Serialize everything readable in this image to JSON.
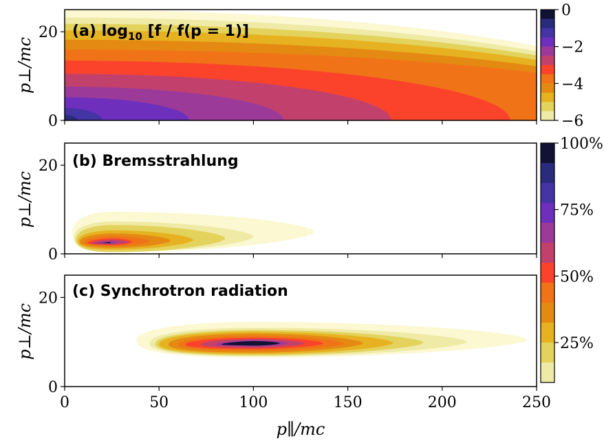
{
  "chart_data": [
    {
      "type": "heatmap",
      "panel": "a",
      "title_prefix": "(a) log",
      "title_sub": "10",
      "title_suffix": " [f / f(p = 1)]",
      "xlabel": "p∥/mc",
      "ylabel": "p⊥/mc",
      "xlim": [
        0,
        250
      ],
      "ylim": [
        0,
        25
      ],
      "xticks": [
        0,
        50,
        100,
        150,
        200,
        250
      ],
      "yticks": [
        0,
        20
      ],
      "contour_levels": [
        -0.5,
        -1,
        -1.5,
        -2,
        -2.5,
        -3,
        -3.5,
        -4,
        -4.5,
        -5,
        -5.5,
        -6
      ],
      "contour_extent": [
        {
          "level": -0.5,
          "p_par_max": 7,
          "p_perp_max": 1.2
        },
        {
          "level": -1,
          "p_par_max": 20,
          "p_perp_max": 2.8
        },
        {
          "level": -1.5,
          "p_par_max": 66,
          "p_perp_max": 5.2
        },
        {
          "level": -2,
          "p_par_max": 116,
          "p_perp_max": 7.6
        },
        {
          "level": -2.5,
          "p_par_max": 173,
          "p_perp_max": 10.5
        },
        {
          "level": -3,
          "p_par_max": 236,
          "p_perp_max": 13.5
        },
        {
          "level": -3.5,
          "p_par_max": 250,
          "p_perp_max": 16
        },
        {
          "level": -4,
          "p_par_max": 250,
          "p_perp_max": 18.2
        },
        {
          "level": -4.5,
          "p_par_max": 250,
          "p_perp_max": 20.3
        },
        {
          "level": -5,
          "p_par_max": 250,
          "p_perp_max": 21.8
        },
        {
          "level": -5.5,
          "p_par_max": 250,
          "p_perp_max": 23.2
        },
        {
          "level": -6,
          "p_par_max": 250,
          "p_perp_max": 25
        }
      ],
      "colorbar": {
        "ticks": [
          "0",
          "−2",
          "−4",
          "−6"
        ],
        "range": [
          -6,
          0
        ]
      }
    },
    {
      "type": "heatmap",
      "panel": "b",
      "title": "(b) Bremsstrahlung",
      "xlabel": "p∥/mc",
      "ylabel": "p⊥/mc",
      "xlim": [
        0,
        250
      ],
      "ylim": [
        0,
        25
      ],
      "xticks": [
        0,
        50,
        100,
        150,
        200,
        250
      ],
      "yticks": [
        0,
        20
      ],
      "contour_levels_percent": [
        10,
        20,
        30,
        40,
        50,
        60,
        70,
        80,
        90
      ],
      "peak": {
        "p_par": 25,
        "p_perp": 2.5
      },
      "contour_extent": [
        {
          "level": 10,
          "p_par_min": 4,
          "p_par_max": 132,
          "p_perp_max": 9.5
        },
        {
          "level": 20,
          "p_par_min": 5,
          "p_par_max": 100,
          "p_perp_max": 7.3
        },
        {
          "level": 30,
          "p_par_min": 6,
          "p_par_max": 85,
          "p_perp_max": 6.5
        },
        {
          "level": 40,
          "p_par_min": 7,
          "p_par_max": 68,
          "p_perp_max": 5.3
        },
        {
          "level": 50,
          "p_par_min": 8,
          "p_par_max": 56,
          "p_perp_max": 4.6
        },
        {
          "level": 60,
          "p_par_min": 10,
          "p_par_max": 45,
          "p_perp_max": 4.0
        },
        {
          "level": 70,
          "p_par_min": 12,
          "p_par_max": 36,
          "p_perp_max": 3.5
        },
        {
          "level": 80,
          "p_par_min": 14,
          "p_par_max": 34,
          "p_perp_max": 3.2
        },
        {
          "level": 90,
          "p_par_min": 15,
          "p_par_max": 28,
          "p_perp_max": 2.9
        }
      ]
    },
    {
      "type": "heatmap",
      "panel": "c",
      "title": "(c) Synchrotron radiation",
      "xlabel": "p∥/mc",
      "ylabel": "p⊥/mc",
      "xlim": [
        0,
        250
      ],
      "ylim": [
        0,
        25
      ],
      "xticks": [
        0,
        50,
        100,
        150,
        200,
        250
      ],
      "yticks": [
        0,
        20
      ],
      "contour_levels_percent": [
        10,
        20,
        30,
        40,
        50,
        60,
        70,
        80,
        90
      ],
      "peak": {
        "p_par": 100,
        "p_perp": 10
      },
      "contour_extent": [
        {
          "level": 10,
          "p_par_min": 38,
          "p_par_max": 245,
          "p_perp_min": 6.5,
          "p_perp_max": 14.5
        },
        {
          "level": 20,
          "p_par_min": 45,
          "p_par_max": 213,
          "p_perp_min": 6.8,
          "p_perp_max": 13.2
        },
        {
          "level": 30,
          "p_par_min": 48,
          "p_par_max": 190,
          "p_perp_min": 7.0,
          "p_perp_max": 12.7
        },
        {
          "level": 40,
          "p_par_min": 50,
          "p_par_max": 174,
          "p_perp_min": 7.3,
          "p_perp_max": 12.3
        },
        {
          "level": 50,
          "p_par_min": 55,
          "p_par_max": 158,
          "p_perp_min": 7.6,
          "p_perp_max": 11.9
        },
        {
          "level": 60,
          "p_par_min": 60,
          "p_par_max": 148,
          "p_perp_min": 8.0,
          "p_perp_max": 11.4
        },
        {
          "level": 70,
          "p_par_min": 64,
          "p_par_max": 137,
          "p_perp_min": 8.4,
          "p_perp_max": 11.0
        },
        {
          "level": 80,
          "p_par_min": 72,
          "p_par_max": 127,
          "p_perp_min": 8.7,
          "p_perp_max": 10.7
        },
        {
          "level": 90,
          "p_par_min": 80,
          "p_par_max": 118,
          "p_perp_min": 9.0,
          "p_perp_max": 10.4
        }
      ]
    }
  ],
  "colorbar_percent": {
    "ticks": [
      "100%",
      "75%",
      "50%",
      "25%"
    ],
    "range": [
      10,
      100
    ]
  },
  "palette": [
    "#fbf8d2",
    "#efeaa6",
    "#e3d25b",
    "#e7b221",
    "#e48a13",
    "#f07417",
    "#fb432c",
    "#c2416c",
    "#9c3a9a",
    "#6e2fbc",
    "#4434a4",
    "#2b2b7c",
    "#121235"
  ]
}
